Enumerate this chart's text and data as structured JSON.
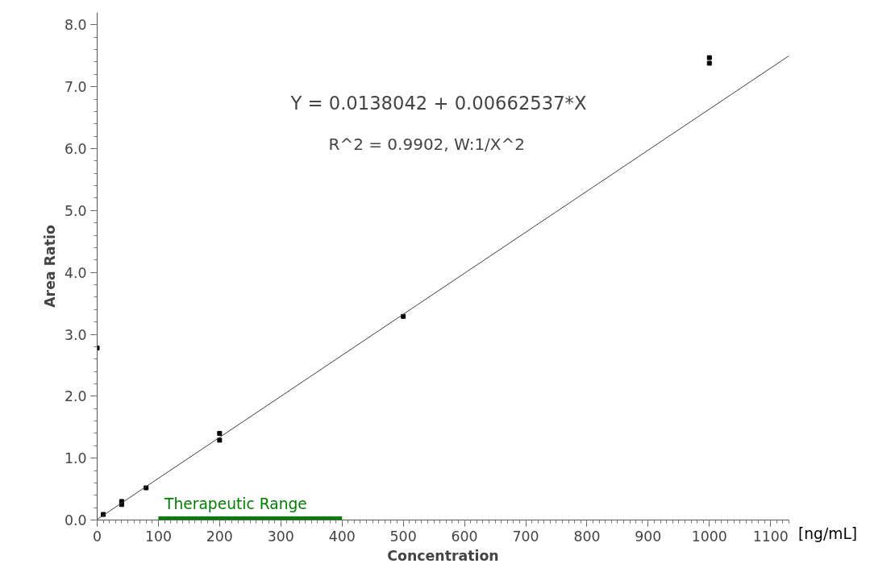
{
  "chart_data": {
    "type": "scatter",
    "xlabel": "Concentration",
    "ylabel": "Area Ratio",
    "xlim": [
      0,
      1130
    ],
    "ylim": [
      0,
      8.2
    ],
    "xticks": [
      0,
      100,
      200,
      300,
      400,
      500,
      600,
      700,
      800,
      900,
      1000,
      1100
    ],
    "yticks": [
      {
        "value": 0,
        "label": "0.0"
      },
      {
        "value": 1,
        "label": "1.0"
      },
      {
        "value": 2,
        "label": "2.0"
      },
      {
        "value": 3,
        "label": "3.0"
      },
      {
        "value": 4,
        "label": "4.0"
      },
      {
        "value": 5,
        "label": "5.0"
      },
      {
        "value": 6,
        "label": "6.0"
      },
      {
        "value": 7,
        "label": "7.0"
      },
      {
        "value": 8,
        "label": "8.0"
      }
    ],
    "grid": false,
    "marker": "square",
    "series": [
      {
        "color": "#000000",
        "x": [
          0,
          10,
          40,
          40,
          80,
          200,
          200,
          500,
          1000,
          1000
        ],
        "values": [
          2.78,
          0.09,
          0.25,
          0.3,
          0.52,
          1.4,
          1.29,
          3.29,
          7.47,
          7.38
        ]
      },
      {
        "type": "line",
        "color": "#404040",
        "marker": "none",
        "x": [
          0,
          1130
        ],
        "values": [
          0.01,
          7.5
        ]
      },
      {
        "type": "line",
        "name": "Therapeutic Range",
        "color": "#008000",
        "marker": "none",
        "x": [
          100,
          400
        ],
        "values": [
          0,
          0
        ]
      }
    ],
    "annotations": [
      "Y = 0.0138042 + 0.00662537*X",
      "R^2 = 0.9902, W:1/X^2",
      "[ng/mL]"
    ]
  }
}
